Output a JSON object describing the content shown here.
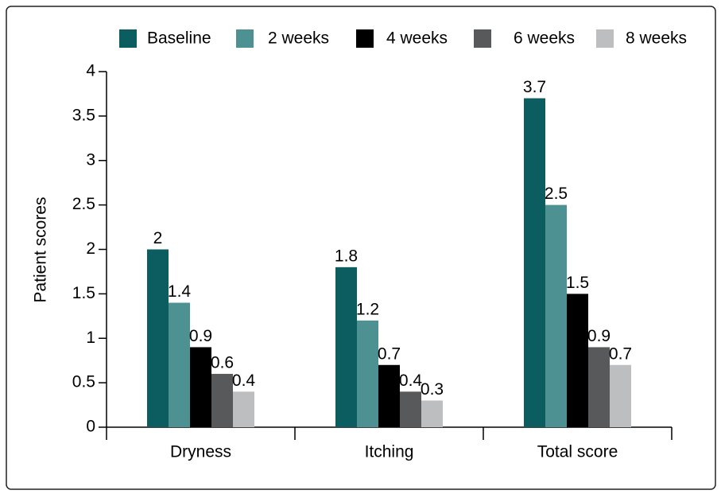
{
  "chart_data": {
    "type": "bar",
    "y_label": "Patient scores",
    "categories": [
      "Dryness",
      "Itching",
      "Total score"
    ],
    "series": [
      {
        "name": "Baseline",
        "color": "#0b5d60",
        "values": [
          2,
          1.8,
          3.7
        ]
      },
      {
        "name": "2 weeks",
        "color": "#4d9193",
        "values": [
          1.4,
          1.2,
          2.5
        ]
      },
      {
        "name": "4 weeks",
        "color": "#000000",
        "values": [
          0.9,
          0.7,
          1.5
        ]
      },
      {
        "name": "6 weeks",
        "color": "#58595b",
        "values": [
          0.6,
          0.4,
          0.9
        ]
      },
      {
        "name": "8 weeks",
        "color": "#bcbec0",
        "values": [
          0.4,
          0.3,
          0.7
        ]
      }
    ],
    "ylim": [
      0,
      4
    ],
    "yticks": [
      0,
      0.5,
      1,
      1.5,
      2,
      2.5,
      3,
      3.5,
      4
    ],
    "grid": false,
    "legend": "top"
  }
}
